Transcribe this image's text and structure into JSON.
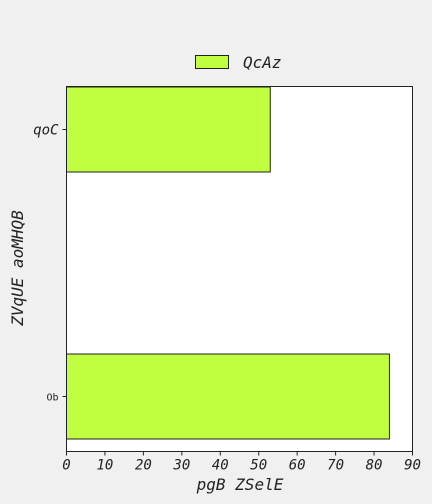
{
  "chart_data": {
    "type": "bar",
    "orientation": "horizontal",
    "categories": [
      "qoC",
      "Ob"
    ],
    "series": [
      {
        "name": "QcAz",
        "values": [
          53,
          84
        ],
        "color": "#bfff3f"
      }
    ],
    "xlabel": "pgB ZSelE",
    "ylabel": "ZVqUE aoMHQB",
    "xlim": [
      0,
      90
    ],
    "xticks": [
      0,
      10,
      20,
      30,
      40,
      50,
      60,
      70,
      80,
      90
    ],
    "grid": false,
    "legend_position": "top-center"
  }
}
